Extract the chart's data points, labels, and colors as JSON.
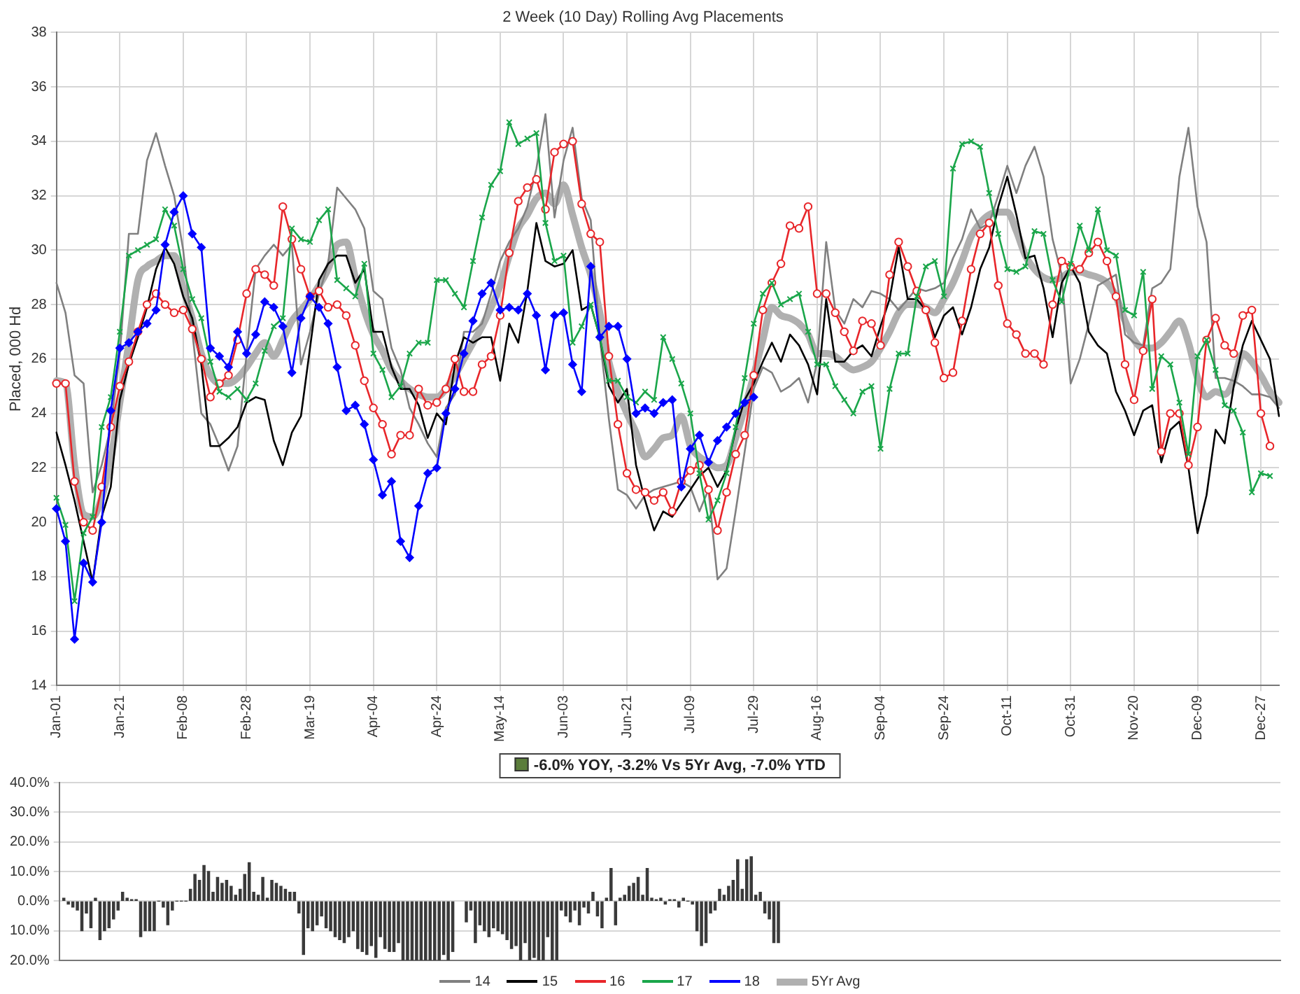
{
  "chart_data": [
    {
      "type": "line",
      "title": "2 Week (10 Day) Rolling Avg Placements",
      "ylabel": "Placed, 000 Hd",
      "categories": [
        "Jan-01",
        null,
        null,
        null,
        null,
        null,
        null,
        "Jan-21",
        null,
        null,
        null,
        null,
        null,
        null,
        "Feb-08",
        null,
        null,
        null,
        null,
        null,
        null,
        "Feb-28",
        null,
        null,
        null,
        null,
        null,
        null,
        "Mar-19",
        null,
        null,
        null,
        null,
        null,
        null,
        "Apr-04",
        null,
        null,
        null,
        null,
        null,
        null,
        "Apr-24",
        null,
        null,
        null,
        null,
        null,
        null,
        "May-14",
        null,
        null,
        null,
        null,
        null,
        null,
        "Jun-03",
        null,
        null,
        null,
        null,
        null,
        null,
        "Jun-21",
        null,
        null,
        null,
        null,
        null,
        null,
        "Jul-09",
        null,
        null,
        null,
        null,
        null,
        null,
        "Jul-29",
        null,
        null,
        null,
        null,
        null,
        null,
        "Aug-16",
        null,
        null,
        null,
        null,
        null,
        null,
        "Sep-04",
        null,
        null,
        null,
        null,
        null,
        null,
        "Sep-24",
        null,
        null,
        null,
        null,
        null,
        null,
        "Oct-11",
        null,
        null,
        null,
        null,
        null,
        null,
        "Oct-31",
        null,
        null,
        null,
        null,
        null,
        null,
        "Nov-20",
        null,
        null,
        null,
        null,
        null,
        null,
        "Dec-09",
        null,
        null,
        null,
        null,
        null,
        null,
        "Dec-27",
        null,
        null
      ],
      "ylim": [
        14,
        38
      ],
      "yticks": [
        14,
        16,
        18,
        20,
        22,
        24,
        26,
        28,
        30,
        32,
        34,
        36,
        38
      ],
      "grid": true,
      "legend": "bottom",
      "series": [
        {
          "name": "14",
          "color": "#808080",
          "marker": "none",
          "values": [
            28.8,
            27.7,
            25.4,
            25.1,
            21.1,
            22.1,
            23.5,
            26.2,
            30.6,
            30.6,
            33.3,
            34.3,
            33.1,
            32.0,
            30.0,
            27.0,
            24.0,
            23.6,
            22.8,
            21.9,
            22.8,
            26.2,
            29.3,
            29.8,
            30.2,
            29.8,
            30.2,
            25.8,
            27.0,
            28.4,
            29.5,
            32.3,
            31.9,
            31.5,
            30.8,
            28.5,
            28.2,
            26.4,
            25.6,
            24.2,
            23.6,
            22.9,
            22.4,
            24.2,
            24.7,
            27.0,
            27.0,
            27.3,
            28.4,
            29.6,
            30.3,
            30.8,
            31.6,
            33.0,
            35.0,
            31.2,
            33.3,
            34.5,
            31.9,
            31.1,
            26.8,
            23.8,
            21.2,
            21.0,
            20.5,
            21.0,
            21.2,
            21.3,
            21.4,
            21.5,
            21.3,
            20.4,
            21.2,
            17.9,
            18.3,
            20.4,
            22.6,
            24.9,
            25.7,
            25.5,
            24.8,
            25.0,
            25.3,
            24.4,
            25.9,
            30.3,
            27.8,
            27.3,
            28.2,
            27.9,
            28.5,
            28.4,
            28.2,
            27.8,
            28.2,
            28.6,
            28.5,
            28.6,
            28.8,
            29.7,
            30.4,
            31.5,
            30.8,
            31.0,
            32.0,
            33.1,
            32.1,
            33.1,
            33.8,
            32.7,
            30.4,
            29.1,
            25.1,
            26.0,
            27.3,
            28.7,
            28.9,
            29.1,
            26.9,
            26.6,
            26.5,
            28.6,
            28.8,
            29.3,
            32.7,
            34.5,
            31.6,
            30.3,
            25.3,
            25.3,
            25.2,
            25.0,
            24.7,
            24.7,
            24.6,
            24.2
          ]
        },
        {
          "name": "15",
          "color": "#000000",
          "marker": "none",
          "values": [
            23.3,
            22.1,
            20.8,
            19.3,
            17.8,
            20.2,
            21.3,
            24.5,
            25.8,
            26.8,
            27.9,
            29.3,
            30.1,
            29.5,
            28.3,
            27.5,
            25.8,
            22.8,
            22.8,
            23.1,
            23.5,
            24.4,
            24.6,
            24.5,
            23.0,
            22.1,
            23.3,
            23.9,
            26.4,
            28.9,
            29.5,
            29.8,
            29.8,
            28.8,
            29.3,
            27.0,
            27.0,
            25.7,
            24.9,
            24.9,
            24.3,
            23.1,
            24.0,
            23.6,
            25.8,
            26.8,
            26.6,
            26.8,
            26.8,
            25.2,
            27.3,
            26.6,
            28.5,
            31.0,
            29.6,
            29.4,
            29.5,
            30.0,
            27.8,
            28.0,
            26.8,
            25.0,
            24.4,
            24.9,
            22.1,
            20.8,
            19.7,
            20.4,
            20.2,
            20.7,
            21.2,
            21.7,
            22.0,
            21.3,
            21.9,
            23.4,
            24.5,
            25.1,
            25.9,
            26.6,
            25.9,
            26.9,
            26.5,
            25.8,
            24.7,
            28.2,
            25.9,
            25.9,
            26.3,
            26.5,
            26.1,
            27.2,
            28.2,
            30.1,
            28.2,
            28.2,
            27.8,
            26.8,
            27.6,
            27.9,
            26.9,
            27.9,
            29.3,
            30.1,
            31.6,
            32.7,
            31.3,
            29.7,
            29.8,
            28.6,
            26.8,
            28.8,
            29.4,
            28.8,
            27.0,
            26.5,
            26.2,
            24.8,
            24.1,
            23.2,
            24.1,
            24.3,
            22.2,
            23.4,
            23.7,
            22.0,
            19.6,
            21.0,
            23.4,
            22.9,
            25.0,
            26.5,
            27.4,
            26.7,
            26.0,
            23.9
          ]
        },
        {
          "name": "16",
          "color": "#e8262a",
          "marker": "circle",
          "values": [
            25.1,
            25.1,
            21.5,
            20.0,
            19.7,
            21.3,
            23.5,
            25.0,
            25.9,
            27.0,
            28.0,
            28.4,
            28.0,
            27.7,
            27.8,
            27.1,
            26.0,
            24.6,
            25.1,
            25.4,
            26.7,
            28.4,
            29.3,
            29.1,
            28.7,
            31.6,
            30.4,
            29.3,
            28.3,
            28.5,
            27.9,
            28.0,
            27.6,
            26.5,
            25.2,
            24.2,
            23.6,
            22.5,
            23.2,
            23.2,
            24.9,
            24.3,
            24.4,
            24.9,
            26.0,
            24.8,
            24.8,
            25.8,
            26.1,
            27.6,
            29.9,
            31.8,
            32.3,
            32.6,
            31.5,
            33.6,
            33.9,
            34.0,
            31.7,
            30.6,
            30.3,
            26.1,
            23.6,
            21.8,
            21.2,
            21.1,
            20.8,
            21.1,
            20.4,
            21.5,
            21.9,
            22.1,
            21.2,
            19.7,
            21.1,
            22.5,
            23.2,
            25.4,
            27.8,
            28.8,
            29.5,
            30.9,
            30.8,
            31.6,
            28.4,
            28.4,
            27.7,
            27.0,
            26.3,
            27.4,
            27.3,
            26.5,
            29.1,
            30.3,
            29.4,
            28.5,
            27.8,
            26.6,
            25.3,
            25.5,
            27.4,
            29.3,
            30.6,
            31.0,
            28.7,
            27.3,
            26.9,
            26.2,
            26.2,
            25.8,
            28.0,
            29.6,
            29.4,
            29.3,
            29.9,
            30.3,
            29.6,
            28.3,
            25.8,
            24.5,
            26.3,
            28.2,
            22.6,
            24.0,
            24.0,
            22.1,
            23.5,
            26.7,
            27.5,
            26.5,
            26.2,
            27.6,
            27.8,
            24.0,
            22.8,
            null
          ]
        },
        {
          "name": "17",
          "color": "#1aa64a",
          "marker": "cross",
          "values": [
            20.9,
            19.9,
            17.1,
            19.6,
            20.2,
            23.5,
            24.6,
            27.0,
            29.8,
            30.0,
            30.2,
            30.4,
            31.5,
            30.9,
            29.3,
            28.2,
            27.5,
            25.9,
            24.8,
            24.6,
            24.9,
            24.5,
            25.1,
            26.3,
            27.2,
            27.5,
            30.8,
            30.4,
            30.3,
            31.1,
            31.5,
            28.9,
            28.6,
            28.3,
            29.5,
            26.2,
            25.6,
            24.6,
            25.0,
            26.2,
            26.6,
            26.6,
            28.9,
            28.9,
            28.4,
            27.9,
            29.6,
            31.2,
            32.4,
            32.9,
            34.7,
            33.9,
            34.1,
            34.3,
            31.0,
            29.6,
            29.8,
            26.6,
            27.2,
            28.0,
            26.8,
            25.2,
            25.2,
            24.6,
            24.4,
            24.8,
            24.5,
            26.8,
            26.0,
            25.1,
            24.0,
            21.8,
            20.1,
            20.8,
            21.8,
            23.5,
            25.3,
            27.3,
            28.4,
            28.8,
            28.0,
            28.2,
            28.4,
            27.0,
            25.8,
            25.8,
            25.0,
            24.5,
            24.0,
            24.8,
            25.0,
            22.7,
            24.9,
            26.2,
            26.2,
            28.3,
            29.4,
            29.6,
            28.3,
            33.0,
            33.9,
            34.0,
            33.8,
            32.1,
            30.6,
            29.3,
            29.2,
            29.4,
            30.7,
            30.6,
            28.9,
            28.1,
            29.5,
            30.9,
            30.0,
            31.5,
            30.0,
            29.8,
            27.8,
            27.6,
            29.2,
            24.9,
            26.1,
            25.8,
            24.4,
            22.5,
            26.1,
            26.7,
            25.6,
            24.3,
            24.1,
            23.3,
            21.1,
            21.8,
            21.7,
            null
          ]
        },
        {
          "name": "18",
          "color": "#0000ff",
          "marker": "diamond",
          "values": [
            20.5,
            19.3,
            15.7,
            18.5,
            17.8,
            20.0,
            24.1,
            26.4,
            26.6,
            27.0,
            27.3,
            27.8,
            30.2,
            31.4,
            32.0,
            30.6,
            30.1,
            26.4,
            26.1,
            25.7,
            27.0,
            26.2,
            26.9,
            28.1,
            27.9,
            27.2,
            25.5,
            27.5,
            28.3,
            27.9,
            27.3,
            25.7,
            24.1,
            24.3,
            23.6,
            22.3,
            21.0,
            21.5,
            19.3,
            18.7,
            20.6,
            21.8,
            22.0,
            24.0,
            24.9,
            26.2,
            27.4,
            28.4,
            28.8,
            27.8,
            27.9,
            27.8,
            28.4,
            27.6,
            25.6,
            27.6,
            27.7,
            25.8,
            24.8,
            29.4,
            26.8,
            27.2,
            27.2,
            26.0,
            24.0,
            24.2,
            24.0,
            24.4,
            24.5,
            21.3,
            22.7,
            23.2,
            22.2,
            23.0,
            23.5,
            24.0,
            24.4,
            24.6,
            null,
            null,
            null,
            null,
            null,
            null,
            null,
            null,
            null,
            null,
            null,
            null,
            null,
            null,
            null,
            null,
            null,
            null,
            null,
            null,
            null,
            null,
            null,
            null,
            null,
            null,
            null,
            null,
            null,
            null,
            null,
            null,
            null,
            null,
            null,
            null,
            null,
            null,
            null,
            null,
            null,
            null,
            null,
            null,
            null,
            null,
            null,
            null,
            null,
            null,
            null,
            null,
            null,
            null,
            null,
            null,
            null,
            null
          ]
        },
        {
          "name": "5Yr Avg",
          "color": "#b0b0b0",
          "marker": "none",
          "values": [
            25.2,
            25.1,
            22.1,
            20.3,
            20.2,
            20.9,
            22.3,
            24.4,
            26.6,
            28.9,
            29.4,
            29.6,
            29.8,
            29.8,
            28.6,
            27.5,
            26.2,
            25.4,
            25.1,
            25.1,
            25.3,
            25.7,
            26.2,
            26.6,
            26.1,
            26.7,
            27.4,
            27.8,
            28.2,
            28.7,
            29.3,
            30.2,
            30.3,
            29.0,
            27.8,
            26.9,
            26.3,
            25.6,
            25.2,
            24.9,
            24.7,
            24.6,
            24.6,
            24.9,
            25.4,
            26.0,
            26.6,
            27.2,
            27.9,
            28.7,
            29.8,
            30.8,
            31.3,
            31.9,
            32.1,
            31.7,
            32.4,
            31.3,
            30.1,
            29.1,
            27.7,
            25.9,
            24.8,
            24.0,
            23.3,
            22.4,
            22.7,
            23.1,
            23.2,
            23.9,
            22.8,
            22.4,
            22.2,
            22.0,
            22.1,
            23.1,
            24.2,
            25.4,
            26.7,
            27.9,
            27.6,
            27.5,
            27.3,
            26.9,
            26.2,
            26.2,
            26.1,
            25.8,
            25.6,
            25.7,
            25.9,
            26.4,
            27.0,
            27.7,
            28.0,
            28.0,
            27.9,
            27.7,
            28.2,
            28.8,
            29.6,
            30.5,
            31.0,
            31.3,
            31.4,
            31.4,
            30.7,
            29.8,
            29.3,
            29.0,
            28.9,
            29.0,
            29.2,
            29.2,
            29.1,
            29.0,
            28.8,
            28.3,
            27.4,
            26.7,
            26.4,
            26.4,
            26.6,
            27.0,
            27.4,
            26.6,
            25.3,
            24.6,
            24.8,
            24.7,
            25.2,
            26.2,
            25.9,
            25.4,
            24.8,
            24.4
          ]
        }
      ]
    },
    {
      "type": "bar",
      "annotations": [
        "-6.0% YOY, -3.2% Vs 5Yr Avg, -7.0% YTD"
      ],
      "categories": [
        null,
        null,
        null,
        null,
        null,
        null,
        null,
        null,
        null,
        null,
        null,
        null,
        null,
        null,
        null,
        null,
        null,
        null,
        null,
        null,
        null,
        null,
        null,
        null,
        null,
        null,
        null,
        null,
        null,
        null,
        null,
        null,
        null,
        null,
        null,
        null,
        null,
        null,
        null,
        null,
        null,
        null,
        null,
        null,
        null,
        null,
        null,
        null,
        null,
        null,
        null,
        null,
        null,
        null,
        null,
        null,
        null,
        null,
        null,
        null,
        null,
        null,
        null,
        null,
        null,
        null,
        null,
        null,
        null,
        null,
        null,
        null,
        null,
        null,
        null,
        null,
        null,
        null,
        null,
        null,
        null,
        null,
        null,
        null,
        null,
        null,
        null,
        null,
        null,
        null,
        null,
        null,
        null,
        null,
        null,
        null,
        null,
        null,
        null,
        null,
        null,
        null,
        null,
        null,
        null,
        null,
        null,
        null,
        null,
        null,
        null,
        null,
        null,
        null,
        null,
        null,
        null,
        null,
        null,
        null,
        null,
        null,
        null,
        null,
        null,
        null,
        null,
        null,
        null,
        null,
        null,
        null,
        null,
        null,
        null,
        null,
        null,
        null,
        null,
        null,
        null,
        null,
        null,
        null,
        null,
        null,
        null,
        null,
        null,
        null,
        null,
        null,
        null,
        null,
        null,
        null,
        null,
        null,
        null,
        null,
        null,
        null,
        null,
        null,
        null,
        null,
        null,
        null,
        null,
        null,
        null,
        null,
        null,
        null,
        null,
        null,
        null,
        null,
        null,
        null,
        null,
        null,
        null,
        null,
        null,
        null,
        null,
        null,
        null,
        null,
        null,
        null,
        null,
        null,
        null,
        null,
        null,
        null,
        null,
        null,
        null,
        null,
        null,
        null,
        null,
        null,
        null,
        null,
        null,
        null,
        null,
        null,
        null,
        null,
        null,
        null,
        null,
        null,
        null,
        null,
        null,
        null,
        null,
        null,
        null,
        null,
        null,
        null,
        null,
        null,
        null,
        null,
        null,
        null,
        null,
        null,
        null,
        null,
        null,
        null,
        null,
        null,
        null,
        null,
        null,
        null,
        null,
        null,
        null,
        null,
        null,
        null,
        null,
        null,
        null,
        null,
        null,
        null,
        null,
        null,
        null,
        null,
        null,
        null,
        null,
        null,
        null,
        null,
        null,
        null,
        null
      ],
      "ylim": [
        -20,
        40
      ],
      "yticks": [
        {
          "value": -20,
          "label": "20.0%"
        },
        {
          "value": -10,
          "label": "10.0%"
        },
        {
          "value": 0,
          "label": "0.0%"
        },
        {
          "value": 10,
          "label": "10.0%"
        },
        {
          "value": 20,
          "label": "20.0%"
        },
        {
          "value": 30,
          "label": "30.0%"
        },
        {
          "value": 40,
          "label": "40.0%"
        }
      ],
      "grid": "y",
      "tick_labels": "y",
      "color": "#3a3a3a",
      "values": [
        null,
        1,
        -1,
        -2,
        -3,
        -10,
        -4,
        -9,
        1,
        -13,
        -10,
        -9,
        -6,
        -3,
        3,
        1,
        0.5,
        0.5,
        -12,
        -10,
        -10,
        -10,
        0,
        -2,
        -8,
        -3,
        0,
        0,
        0,
        4,
        9,
        7,
        12,
        10,
        3,
        8,
        6,
        7,
        5,
        2,
        4,
        9,
        13,
        3,
        2,
        8,
        1,
        7,
        6,
        5,
        4,
        3,
        3,
        -4,
        -18,
        -9,
        -10,
        -8,
        -5,
        -9,
        -10,
        -12,
        -13,
        -14,
        -12,
        -10,
        -16,
        -17,
        -18,
        -15,
        -19,
        -12,
        -16,
        -17,
        -17,
        -14,
        -20,
        -20,
        -20,
        -20,
        -20,
        -20,
        -20,
        -20,
        -20,
        -18,
        -20,
        -17,
        null,
        null,
        -7,
        -3,
        -14,
        -8,
        -10,
        -12,
        -9,
        -10,
        -11,
        -13,
        -16,
        -15,
        -20,
        -14,
        -20,
        -19,
        -20,
        -20,
        -12,
        -20,
        -20,
        -3,
        -5,
        -7,
        -3,
        -8,
        -2,
        -4,
        3,
        -5,
        -9,
        1,
        11,
        -8,
        1,
        2,
        5,
        6,
        8,
        2,
        11,
        1,
        0.5,
        1,
        -1,
        0.5,
        0.5,
        -2,
        1,
        0,
        -1,
        -10,
        -15,
        -14,
        -4,
        -3,
        4,
        2,
        5,
        7,
        14,
        4,
        14,
        15,
        2,
        3,
        -4,
        -6,
        -14,
        -14,
        null,
        null,
        null,
        null,
        null,
        null,
        null,
        null,
        null,
        null,
        null,
        null,
        null,
        null,
        null,
        null,
        null,
        null,
        null,
        null,
        null,
        null,
        null,
        null,
        null,
        null,
        null,
        null,
        null,
        null,
        null,
        null,
        null,
        null,
        null,
        null,
        null,
        null,
        null,
        null,
        null,
        null,
        null,
        null,
        null,
        null,
        null,
        null,
        null,
        null,
        null,
        null,
        null,
        null,
        null,
        null,
        null,
        null,
        null,
        null,
        null,
        null,
        null,
        null,
        null,
        null,
        null,
        null,
        null,
        null,
        null,
        null,
        null,
        null,
        null,
        null,
        null,
        null,
        null,
        null,
        null,
        null,
        null,
        null,
        null,
        null,
        null,
        null,
        null,
        null,
        null,
        null,
        null,
        null,
        null,
        null,
        null,
        null,
        null,
        null,
        null,
        null,
        null,
        null,
        null,
        null,
        null,
        null,
        null,
        null,
        null
      ]
    }
  ]
}
